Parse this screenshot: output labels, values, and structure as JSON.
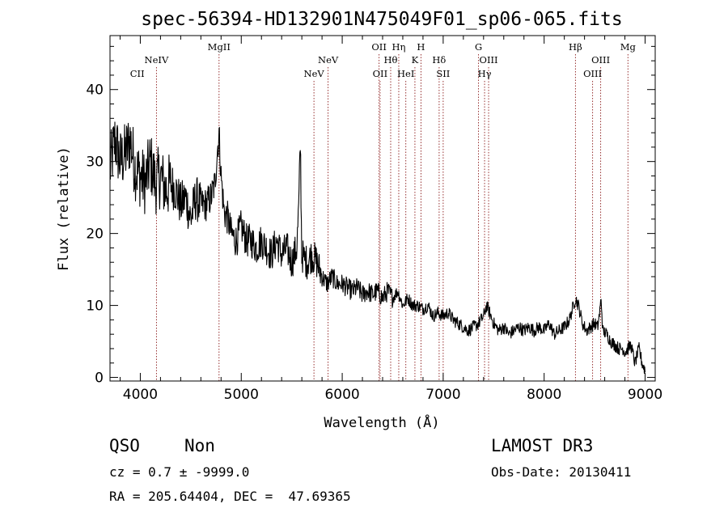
{
  "chart_data": {
    "type": "line",
    "title": "spec-56394-HD132901N475049F01_sp06-065.fits",
    "xlabel": "Wavelength (Å)",
    "ylabel": "Flux (relative)",
    "xlim": [
      3700,
      9100
    ],
    "ylim": [
      -0.5,
      47.5
    ],
    "xticks": [
      4000,
      5000,
      6000,
      7000,
      8000,
      9000
    ],
    "yticks": [
      0,
      10,
      20,
      30,
      40
    ],
    "grid": false,
    "series": [
      {
        "name": "flux",
        "x": [
          3700,
          3750,
          3800,
          3850,
          3900,
          3950,
          4000,
          4050,
          4100,
          4150,
          4200,
          4250,
          4300,
          4350,
          4400,
          4450,
          4500,
          4550,
          4600,
          4650,
          4700,
          4740,
          4760,
          4780,
          4800,
          4830,
          4870,
          4900,
          4950,
          5000,
          5050,
          5100,
          5150,
          5200,
          5250,
          5300,
          5350,
          5400,
          5450,
          5500,
          5550,
          5570,
          5585,
          5600,
          5650,
          5700,
          5750,
          5800,
          5850,
          5900,
          5950,
          6000,
          6050,
          6100,
          6150,
          6200,
          6250,
          6300,
          6350,
          6400,
          6450,
          6500,
          6550,
          6600,
          6650,
          6700,
          6750,
          6800,
          6850,
          6900,
          6950,
          7000,
          7050,
          7100,
          7150,
          7200,
          7250,
          7300,
          7350,
          7400,
          7430,
          7460,
          7500,
          7550,
          7600,
          7650,
          7700,
          7750,
          7800,
          7850,
          7900,
          7950,
          8000,
          8050,
          8100,
          8150,
          8200,
          8250,
          8280,
          8310,
          8340,
          8380,
          8420,
          8460,
          8500,
          8530,
          8550,
          8565,
          8580,
          8620,
          8660,
          8700,
          8740,
          8780,
          8800,
          8830,
          8860,
          8900,
          8940,
          8970,
          9000
        ],
        "y": [
          29,
          33,
          30,
          31,
          33,
          29,
          28,
          27,
          30,
          27,
          28,
          26,
          27,
          26,
          24,
          25,
          22,
          25,
          24,
          24,
          25,
          27,
          31,
          34,
          28,
          23,
          22,
          20,
          19,
          21,
          19,
          19,
          18,
          19,
          18,
          17,
          19,
          17,
          18,
          16,
          18,
          24,
          33,
          17,
          16,
          17,
          16,
          14,
          13,
          14,
          13,
          13,
          12.5,
          12,
          12.5,
          11.5,
          12,
          11.5,
          12,
          11,
          12,
          11,
          12,
          10,
          11,
          10,
          10,
          9.5,
          10,
          8.5,
          9,
          8.5,
          9,
          8,
          7.5,
          7,
          6.5,
          7,
          7.5,
          8.5,
          10,
          9,
          7.5,
          6.5,
          7,
          6,
          6.5,
          7,
          6.5,
          7,
          6.5,
          7,
          6.5,
          7.5,
          6,
          6.5,
          7,
          8,
          9.5,
          11,
          10,
          7.5,
          6.5,
          7,
          7.5,
          7,
          9,
          11,
          6.5,
          6,
          5,
          4.5,
          4,
          4,
          3.5,
          4,
          4.5,
          2,
          4,
          2,
          1
        ]
      }
    ],
    "lines": [
      {
        "label": "CII",
        "x": 3970,
        "row": 4,
        "stroke": false
      },
      {
        "label": "NeIV",
        "x": 4160,
        "row": 2,
        "stroke": true
      },
      {
        "label": "MgII",
        "x": 4780,
        "row": 1,
        "stroke": true
      },
      {
        "label": "NeV",
        "x": 5720,
        "row": 4,
        "stroke": true
      },
      {
        "label": "NeV",
        "x": 5860,
        "row": 2,
        "stroke": true
      },
      {
        "label": "OII",
        "x": 6365,
        "row": 1,
        "stroke": true
      },
      {
        "label": "OII",
        "x": 6375,
        "row": 4,
        "stroke": true
      },
      {
        "label": "Hθ",
        "x": 6480,
        "row": 3,
        "stroke": true
      },
      {
        "label": "Hη",
        "x": 6560,
        "row": 1,
        "stroke": true
      },
      {
        "label": "HeI",
        "x": 6630,
        "row": 4,
        "stroke": true
      },
      {
        "label": "K",
        "x": 6720,
        "row": 2,
        "stroke": true
      },
      {
        "label": "H",
        "x": 6780,
        "row": 1,
        "stroke": true
      },
      {
        "label": "Hδ",
        "x": 6960,
        "row": 3,
        "stroke": true
      },
      {
        "label": "SII",
        "x": 7000,
        "row": 4,
        "stroke": true
      },
      {
        "label": "G",
        "x": 7350,
        "row": 1,
        "stroke": true
      },
      {
        "label": "Hγ",
        "x": 7410,
        "row": 4,
        "stroke": true
      },
      {
        "label": "OIII",
        "x": 7450,
        "row": 2,
        "stroke": true
      },
      {
        "label": "Hβ",
        "x": 8310,
        "row": 1,
        "stroke": true
      },
      {
        "label": "OIII",
        "x": 8480,
        "row": 4,
        "stroke": true
      },
      {
        "label": "OIII",
        "x": 8560,
        "row": 2,
        "stroke": true
      },
      {
        "label": "Mg",
        "x": 8830,
        "row": 1,
        "stroke": true
      }
    ],
    "line_color": "#8b1a1a"
  },
  "info": {
    "class": "QSO",
    "subclass": "Non",
    "survey": "LAMOST DR3",
    "cz": "cz = 0.7 ± -9999.0",
    "obs_date": "Obs-Date: 20130411",
    "coords": "RA = 205.64404, DEC =  47.69365"
  }
}
